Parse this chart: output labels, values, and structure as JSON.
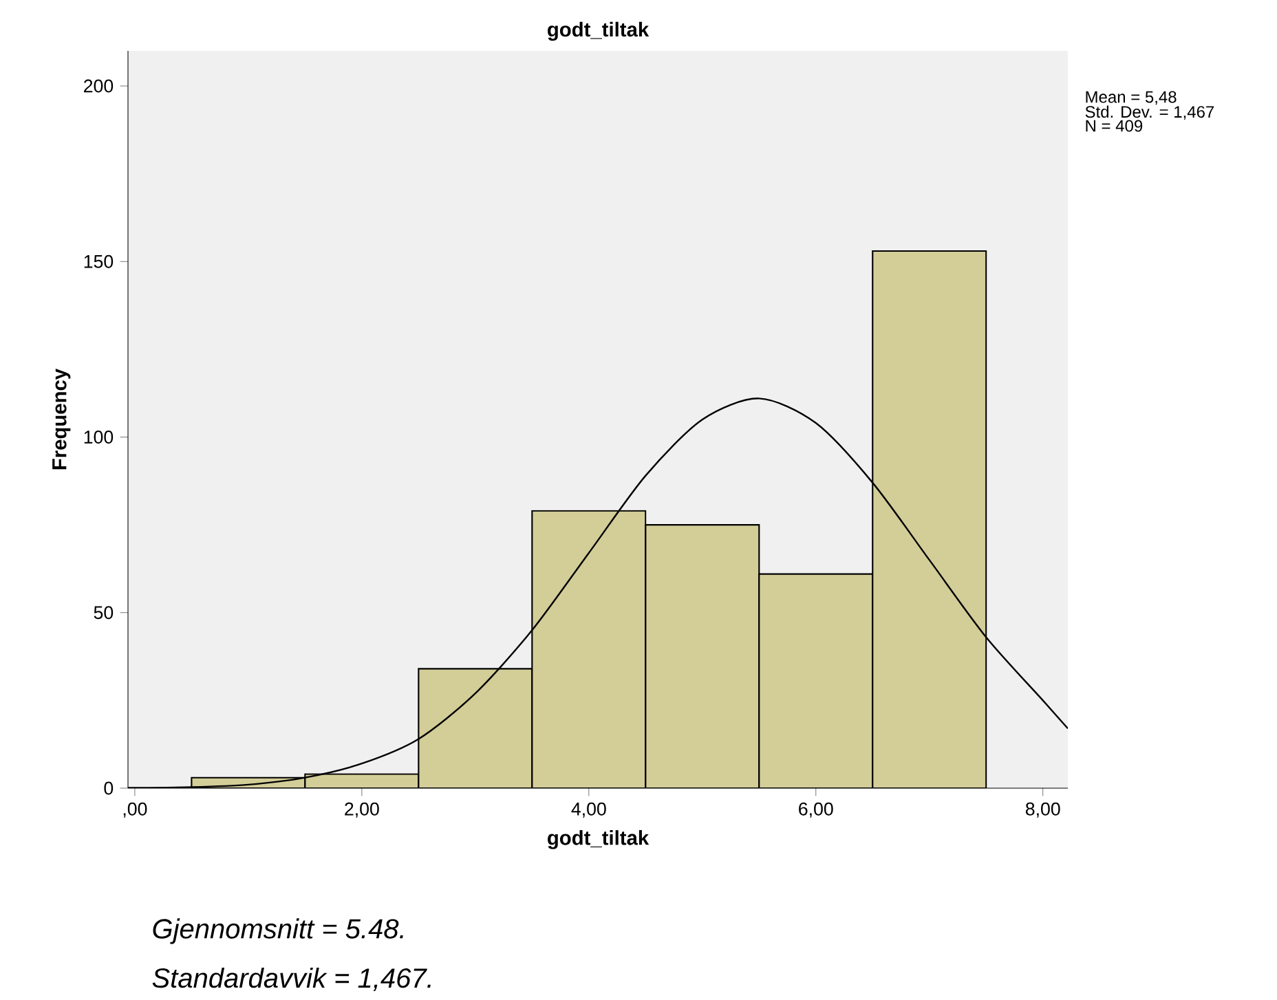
{
  "chart_data": {
    "type": "histogram",
    "title": "godt_tiltak",
    "xlabel": "godt_tiltak",
    "ylabel": "Frequency",
    "bins": [
      0.5,
      1.5,
      2.5,
      3.5,
      4.5,
      5.5,
      6.5,
      7.5
    ],
    "values": [
      3,
      4,
      34,
      79,
      75,
      61,
      153
    ],
    "color": "#d3cd98",
    "series": [
      {
        "type": "line",
        "color": "#000000",
        "x": [
          -0.06,
          0.5,
          1,
          1.5,
          2,
          2.5,
          3,
          3.5,
          4,
          4.5,
          5,
          5.5,
          6,
          6.5,
          7,
          7.5,
          8,
          8.22
        ],
        "values": [
          0.1,
          0.3,
          1,
          3,
          7,
          14,
          27,
          45,
          67,
          89,
          105,
          111,
          104,
          87,
          65,
          43,
          25,
          17
        ]
      }
    ],
    "xlim": [
      -0.06,
      8.22
    ],
    "ylim": [
      0,
      210
    ],
    "xticks": [
      {
        "value": 0,
        "label": ",00"
      },
      {
        "value": 2,
        "label": "2,00"
      },
      {
        "value": 4,
        "label": "4,00"
      },
      {
        "value": 6,
        "label": "6,00"
      },
      {
        "value": 8,
        "label": "8,00"
      }
    ],
    "yticks": [
      0,
      50,
      100,
      150,
      200
    ],
    "grid": false,
    "annotations": [
      "Mean = 5,48",
      "Std. Dev. = 1,467",
      "N = 409",
      "Gjennomsnitt = 5.48.",
      "Standardavvik = 1,467."
    ]
  }
}
